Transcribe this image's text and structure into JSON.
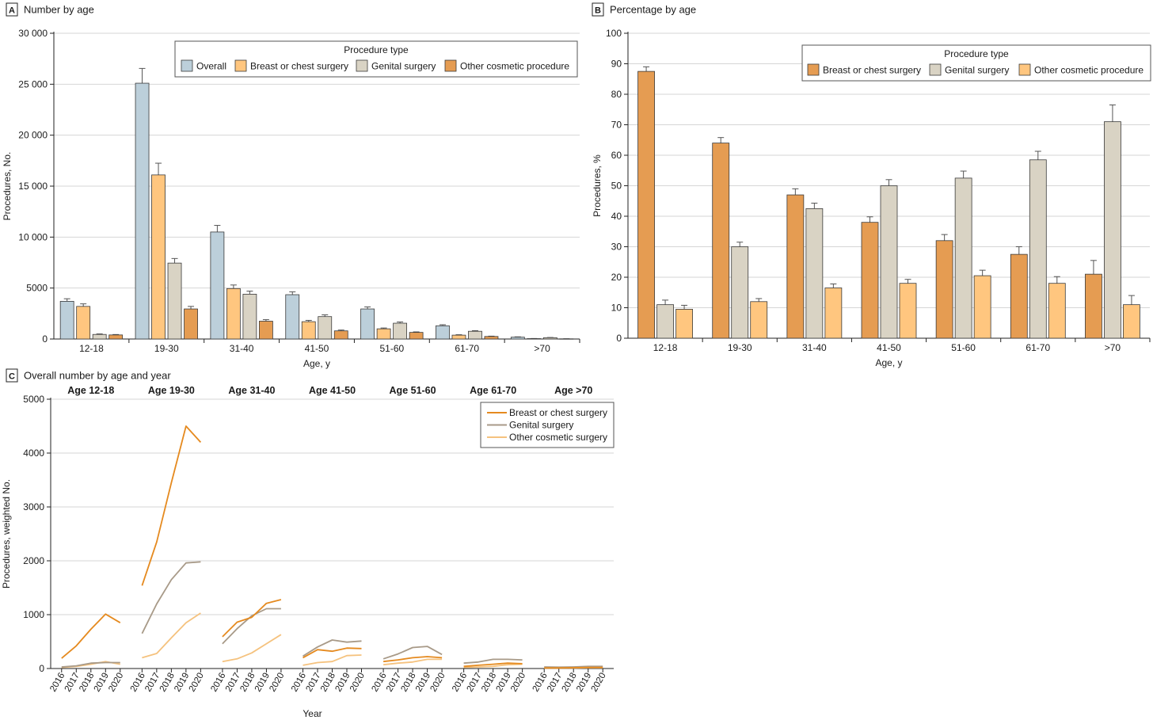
{
  "colors": {
    "overall": "#bccfda",
    "breast": "#ffc67f",
    "genital": "#d9d3c4",
    "other": "#e59c52",
    "line_breast": "#e58a1f",
    "line_genital": "#a89a88",
    "line_other": "#f5c27e",
    "axis": "#222222",
    "grid": "#d6d6d6",
    "bar_stroke": "#3a3a3a"
  },
  "chart_data": [
    {
      "id": "A",
      "type": "bar",
      "panel_letter": "A",
      "title": "Number by age",
      "xlabel": "Age, y",
      "ylabel": "Procedures, No.",
      "ylim": [
        0,
        30000
      ],
      "yticks": [
        0,
        5000,
        10000,
        15000,
        20000,
        25000,
        30000
      ],
      "ytick_labels": [
        "0",
        "5000",
        "10 000",
        "15 000",
        "20 000",
        "25 000",
        "30 000"
      ],
      "grid": true,
      "categories": [
        "12-18",
        "19-30",
        "31-40",
        "41-50",
        "51-60",
        "61-70",
        ">70"
      ],
      "legend": {
        "title": "Procedure type",
        "position": "top-right"
      },
      "series": [
        {
          "name": "Overall",
          "color_key": "overall",
          "values": [
            3700,
            25100,
            10500,
            4350,
            2950,
            1300,
            180
          ],
          "errors": [
            250,
            1450,
            650,
            280,
            200,
            100,
            30
          ]
        },
        {
          "name": "Breast or chest surgery",
          "color_key": "breast",
          "values": [
            3200,
            16100,
            4950,
            1700,
            1000,
            380,
            40
          ],
          "errors": [
            250,
            1150,
            350,
            130,
            80,
            40,
            10
          ]
        },
        {
          "name": "Genital surgery",
          "color_key": "genital",
          "values": [
            450,
            7450,
            4400,
            2200,
            1550,
            760,
            130
          ],
          "errors": [
            50,
            450,
            300,
            170,
            120,
            60,
            20
          ]
        },
        {
          "name": "Other cosmetic procedure",
          "color_key": "other",
          "values": [
            400,
            2950,
            1750,
            800,
            650,
            250,
            20
          ],
          "errors": [
            40,
            250,
            150,
            80,
            50,
            30,
            5
          ]
        }
      ]
    },
    {
      "id": "B",
      "type": "bar",
      "panel_letter": "B",
      "title": "Percentage by age",
      "xlabel": "Age, y",
      "ylabel": "Procedures, %",
      "ylim": [
        0,
        100
      ],
      "yticks": [
        0,
        10,
        20,
        30,
        40,
        50,
        60,
        70,
        80,
        90,
        100
      ],
      "ytick_labels": [
        "0",
        "10",
        "20",
        "30",
        "40",
        "50",
        "60",
        "70",
        "80",
        "90",
        "100"
      ],
      "grid": true,
      "categories": [
        "12-18",
        "19-30",
        "31-40",
        "41-50",
        "51-60",
        "61-70",
        ">70"
      ],
      "legend": {
        "title": "Procedure type",
        "position": "top-right"
      },
      "series": [
        {
          "name": "Breast or chest surgery",
          "color_key": "other",
          "values": [
            87.5,
            64,
            47,
            38,
            32,
            27.5,
            21
          ],
          "errors": [
            1.5,
            1.8,
            2,
            1.8,
            2,
            2.5,
            4.5
          ]
        },
        {
          "name": "Genital surgery",
          "color_key": "genital",
          "values": [
            11,
            30,
            42.5,
            50,
            52.5,
            58.5,
            71
          ],
          "errors": [
            1.5,
            1.5,
            1.8,
            2,
            2.3,
            2.8,
            5.5
          ]
        },
        {
          "name": "Other cosmetic procedure",
          "color_key": "breast",
          "values": [
            9.5,
            12,
            16.5,
            18,
            20.5,
            18,
            11
          ],
          "errors": [
            1.3,
            1,
            1.3,
            1.3,
            1.8,
            2.2,
            3
          ]
        }
      ]
    },
    {
      "id": "C",
      "type": "line",
      "panel_letter": "C",
      "title": "Overall number by age and year",
      "xlabel": "Year",
      "ylabel": "Procedures, weighted No.",
      "ylim": [
        0,
        5000
      ],
      "yticks": [
        0,
        1000,
        2000,
        3000,
        4000,
        5000
      ],
      "ytick_labels": [
        "0",
        "1000",
        "2000",
        "3000",
        "4000",
        "5000"
      ],
      "grid": true,
      "years": [
        "2016",
        "2017",
        "2018",
        "2019",
        "2020"
      ],
      "legend": {
        "position": "top-right"
      },
      "groups": [
        {
          "label": "Age 12-18",
          "breast": [
            190,
            420,
            730,
            1010,
            850
          ],
          "genital": [
            30,
            50,
            100,
            110,
            110
          ],
          "other": [
            20,
            40,
            80,
            130,
            80
          ]
        },
        {
          "label": "Age 19-30",
          "breast": [
            1540,
            2350,
            3450,
            4500,
            4200
          ],
          "genital": [
            650,
            1200,
            1650,
            1960,
            1980
          ],
          "other": [
            200,
            280,
            570,
            850,
            1030
          ]
        },
        {
          "label": "Age 31-40",
          "breast": [
            590,
            860,
            950,
            1210,
            1280
          ],
          "genital": [
            460,
            740,
            980,
            1110,
            1110
          ],
          "other": [
            130,
            180,
            290,
            460,
            630
          ]
        },
        {
          "label": "Age 41-50",
          "breast": [
            200,
            350,
            320,
            380,
            370
          ],
          "genital": [
            230,
            400,
            530,
            490,
            510
          ],
          "other": [
            60,
            110,
            130,
            240,
            250
          ]
        },
        {
          "label": "Age 51-60",
          "breast": [
            130,
            160,
            200,
            220,
            200
          ],
          "genital": [
            180,
            270,
            390,
            410,
            260
          ],
          "other": [
            70,
            100,
            120,
            170,
            170
          ]
        },
        {
          "label": "Age 61-70",
          "breast": [
            40,
            60,
            80,
            100,
            90
          ],
          "genital": [
            100,
            120,
            170,
            170,
            160
          ],
          "other": [
            20,
            30,
            40,
            70,
            80
          ]
        },
        {
          "label": "Age >70",
          "breast": [
            10,
            10,
            15,
            20,
            20
          ],
          "genital": [
            30,
            25,
            30,
            40,
            40
          ],
          "other": [
            10,
            10,
            10,
            15,
            15
          ]
        }
      ],
      "series": [
        {
          "key": "breast",
          "name": "Breast or chest surgery",
          "color_key": "line_breast"
        },
        {
          "key": "genital",
          "name": "Genital surgery",
          "color_key": "line_genital"
        },
        {
          "key": "other",
          "name": "Other cosmetic surgery",
          "color_key": "line_other"
        }
      ]
    }
  ]
}
